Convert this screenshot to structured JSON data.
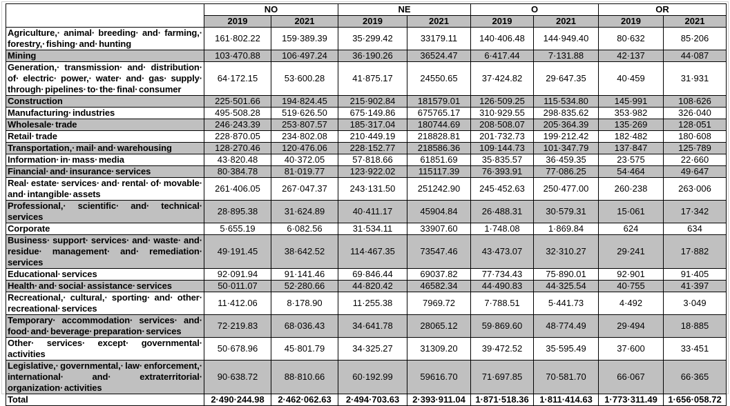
{
  "table": {
    "column_groups": [
      {
        "label": "NO"
      },
      {
        "label": "NE"
      },
      {
        "label": "O"
      },
      {
        "label": "OR"
      }
    ],
    "year_headers": [
      "2019",
      "2021",
      "2019",
      "2021",
      "2019",
      "2021",
      "2019",
      "2021"
    ],
    "shade_color": "#c0c0c0",
    "rows": [
      {
        "label": "Agriculture,· animal· breeding· and· farming,· forestry,· fishing· and· hunting",
        "values": [
          "161·802.22",
          "159·389.39",
          "35·299.42",
          "33179.11",
          "140·406.48",
          "144·949.40",
          "80·632",
          "85·206"
        ]
      },
      {
        "label": "Mining",
        "values": [
          "103·470.88",
          "106·497.24",
          "36·190.26",
          "36524.47",
          "6·417.44",
          "7·131.88",
          "42·137",
          "44·087"
        ]
      },
      {
        "label": "Generation,· transmission· and· distribution· of· electric· power,· water· and· gas· supply· through· pipelines· to· the· final· consumer",
        "values": [
          "64·172.15",
          "53·600.28",
          "41·875.17",
          "24550.65",
          "37·424.82",
          "29·647.35",
          "40·459",
          "31·931"
        ]
      },
      {
        "label": "Construction",
        "values": [
          "225·501.66",
          "194·824.45",
          "215·902.84",
          "181579.01",
          "126·509.25",
          "115·534.80",
          "145·991",
          "108·626"
        ]
      },
      {
        "label": "Manufacturing· industries",
        "values": [
          "495·508.28",
          "519·626.50",
          "675·149.86",
          "675765.17",
          "310·929.55",
          "298·835.62",
          "353·982",
          "326·040"
        ]
      },
      {
        "label": "Wholesale· trade",
        "values": [
          "246·243.39",
          "253·807.57",
          "185·317.04",
          "180744.69",
          "208·508.07",
          "205·364.39",
          "135·269",
          "128·051"
        ]
      },
      {
        "label": "Retail· trade",
        "values": [
          "228·870.05",
          "234·802.08",
          "210·449.19",
          "218828.81",
          "201·732.73",
          "199·212.42",
          "182·482",
          "180·608"
        ]
      },
      {
        "label": "Transportation,· mail· and· warehousing",
        "values": [
          "128·270.46",
          "120·476.06",
          "228·152.77",
          "218586.36",
          "109·144.73",
          "101·347.79",
          "137·847",
          "125·789"
        ]
      },
      {
        "label": "Information· in· mass· media",
        "values": [
          "43·820.48",
          "40·372.05",
          "57·818.66",
          "61851.69",
          "35·835.57",
          "36·459.35",
          "23·575",
          "22·660"
        ]
      },
      {
        "label": "Financial· and· insurance· services",
        "values": [
          "80·384.78",
          "81·019.77",
          "123·922.02",
          "115117.39",
          "76·393.91",
          "77·086.25",
          "54·464",
          "49·647"
        ]
      },
      {
        "label": "Real· estate· services· and· rental· of· movable· and· intangible· assets",
        "values": [
          "261·406.05",
          "267·047.37",
          "243·131.50",
          "251242.90",
          "245·452.63",
          "250·477.00",
          "260·238",
          "263·006"
        ]
      },
      {
        "label": "Professional,· scientific· and· technical· services",
        "values": [
          "28·895.38",
          "31·624.89",
          "40·411.17",
          "45904.84",
          "26·488.31",
          "30·579.31",
          "15·061",
          "17·342"
        ]
      },
      {
        "label": "Corporate",
        "values": [
          "5·655.19",
          "6·082.56",
          "31·534.11",
          "33907.60",
          "1·748.08",
          "1·869.84",
          "624",
          "634"
        ]
      },
      {
        "label": "Business· support· services· and· waste· and· residue· management· and· remediation· services",
        "values": [
          "49·191.45",
          "38·642.52",
          "114·467.35",
          "73547.46",
          "43·473.07",
          "32·310.27",
          "29·241",
          "17·882"
        ]
      },
      {
        "label": "Educational· services",
        "values": [
          "92·091.94",
          "91·141.46",
          "69·846.44",
          "69037.82",
          "77·734.43",
          "75·890.01",
          "92·901",
          "91·405"
        ]
      },
      {
        "label": "Health· and· social· assistance· services",
        "values": [
          "50·011.07",
          "52·280.66",
          "44·820.42",
          "46582.34",
          "44·490.83",
          "44·325.54",
          "40·755",
          "41·397"
        ]
      },
      {
        "label": "Recreational,· cultural,· sporting· and· other· recreational· services",
        "values": [
          "11·412.06",
          "8·178.90",
          "11·255.38",
          "7969.72",
          "7·788.51",
          "5·441.73",
          "4·492",
          "3·049"
        ]
      },
      {
        "label": "Temporary· accommodation· services· and· food· and· beverage· preparation· services",
        "values": [
          "72·219.83",
          "68·036.43",
          "34·641.78",
          "28065.12",
          "59·869.60",
          "48·774.49",
          "29·494",
          "18·885"
        ]
      },
      {
        "label": "Other· services· except· governmental· activities",
        "values": [
          "50·678.96",
          "45·801.79",
          "34·325.27",
          "31309.20",
          "39·472.52",
          "35·595.49",
          "37·600",
          "33·451"
        ]
      },
      {
        "label": "Legislative,· governmental,· law· enforcement,· international· and· extraterritorial· organization· activities",
        "values": [
          "90·638.72",
          "88·810.66",
          "60·192.99",
          "59616.70",
          "71·697.85",
          "70·581.70",
          "66·067",
          "66·365"
        ]
      }
    ],
    "total": {
      "label": "Total",
      "values": [
        "2·490·244.98",
        "2·462·062.63",
        "2·494·703.63",
        "2·393·911.04",
        "1·871·518.36",
        "1·811·414.63",
        "1·773·311.49",
        "1·656·058.72"
      ]
    }
  }
}
